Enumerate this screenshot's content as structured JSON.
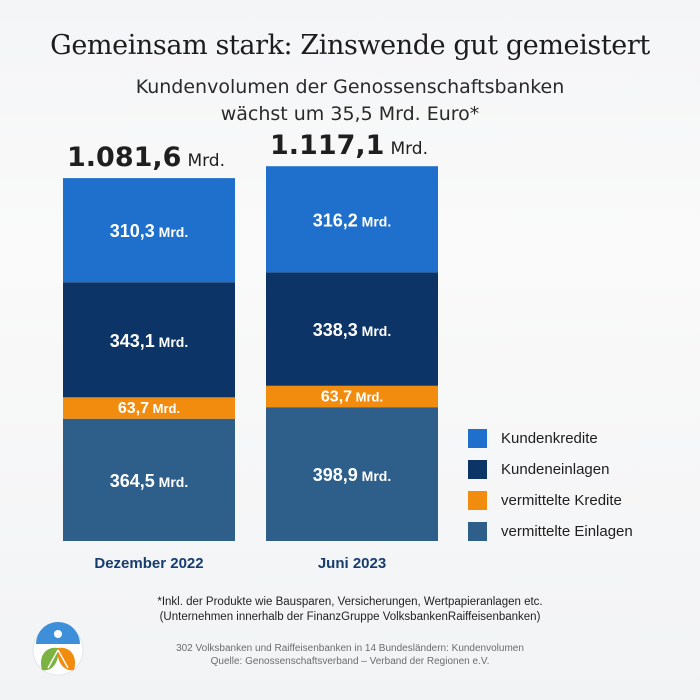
{
  "header": {
    "title": "Gemeinsam stark: Zinswende gut gemeistert",
    "subtitle_line1": "Kundenvolumen der Genossenschaftsbanken",
    "subtitle_line2": "wächst um 35,5 Mrd. Euro*"
  },
  "chart_data": {
    "type": "bar",
    "stacked": true,
    "title": "Gemeinsam stark: Zinswende gut gemeistert",
    "subtitle": "Kundenvolumen der Genossenschaftsbanken wächst um 35,5 Mrd. Euro*",
    "categories": [
      "Dezember 2022",
      "Juni 2023"
    ],
    "totals": [
      1081.6,
      1117.1
    ],
    "total_labels": [
      "1.081,6",
      "1.117,1"
    ],
    "unit": "Mrd.",
    "series": [
      {
        "name": "Kundenkredite",
        "values": [
          310.3,
          316.2
        ],
        "labels": [
          "310,3",
          "316,2"
        ],
        "color": "#1f6fcc"
      },
      {
        "name": "Kundeneinlagen",
        "values": [
          343.1,
          338.3
        ],
        "labels": [
          "343,1",
          "338,3"
        ],
        "color": "#0c3466"
      },
      {
        "name": "vermittelte Kredite",
        "values": [
          63.7,
          63.7
        ],
        "labels": [
          "63,7",
          "63,7"
        ],
        "color": "#f28c0f"
      },
      {
        "name": "vermittelte Einlagen",
        "values": [
          364.5,
          398.9
        ],
        "labels": [
          "364,5",
          "398,9"
        ],
        "color": "#2e5f8a"
      }
    ],
    "legend_position": "right",
    "grid": false
  },
  "footnotes": {
    "line1": "*Inkl. der Produkte wie Bausparen, Versicherungen, Wertpapieranlagen etc.",
    "line2": "(Unternehmen innerhalb der FinanzGruppe VolksbankenRaiffeisenbanken)"
  },
  "source": {
    "line1": "302 Volksbanken und Raiffeisenbanken in 14 Bundesländern: Kundenvolumen",
    "line2": "Quelle: Genossenschaftsverband – Verband der Regionen e.V."
  }
}
